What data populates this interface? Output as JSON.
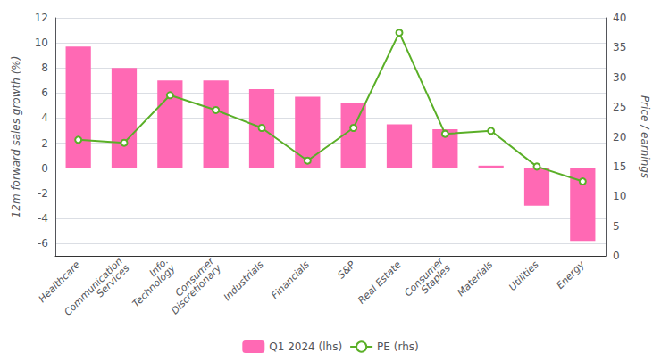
{
  "chart_data": {
    "type": "bar",
    "categories": [
      "Healthcare",
      "Communication\nServices",
      "Info.\nTechnology",
      "Consumer\nDiscretionary",
      "Industrials",
      "Financials",
      "S&P",
      "Real Estate",
      "Consumer\nStaples",
      "Materials",
      "Utilities",
      "Energy"
    ],
    "series": [
      {
        "name": "Q1 2024 (lhs)",
        "type": "bar",
        "color": "#ff69b4",
        "values": [
          9.7,
          8.0,
          7.0,
          7.0,
          6.3,
          5.7,
          5.2,
          3.5,
          3.1,
          0.2,
          -3.0,
          -5.8
        ]
      },
      {
        "name": "PE (rhs)",
        "type": "line",
        "color": "#5aaf27",
        "marker": "circle",
        "axis": "y2",
        "values": [
          19.5,
          19.0,
          27.0,
          24.5,
          21.5,
          16.0,
          21.5,
          37.5,
          20.5,
          21.0,
          15.0,
          12.5
        ]
      }
    ],
    "ylabel": "12m forward sales growth (%)",
    "y2label": "Price / earnings",
    "ylim": [
      -7,
      12
    ],
    "yticks": [
      -6,
      -4,
      -2,
      0,
      2,
      4,
      6,
      8,
      10,
      12
    ],
    "y2lim": [
      0,
      40
    ],
    "y2ticks": [
      0,
      5,
      10,
      15,
      20,
      25,
      30,
      35,
      40
    ],
    "grid": true,
    "legend": "bottom"
  }
}
